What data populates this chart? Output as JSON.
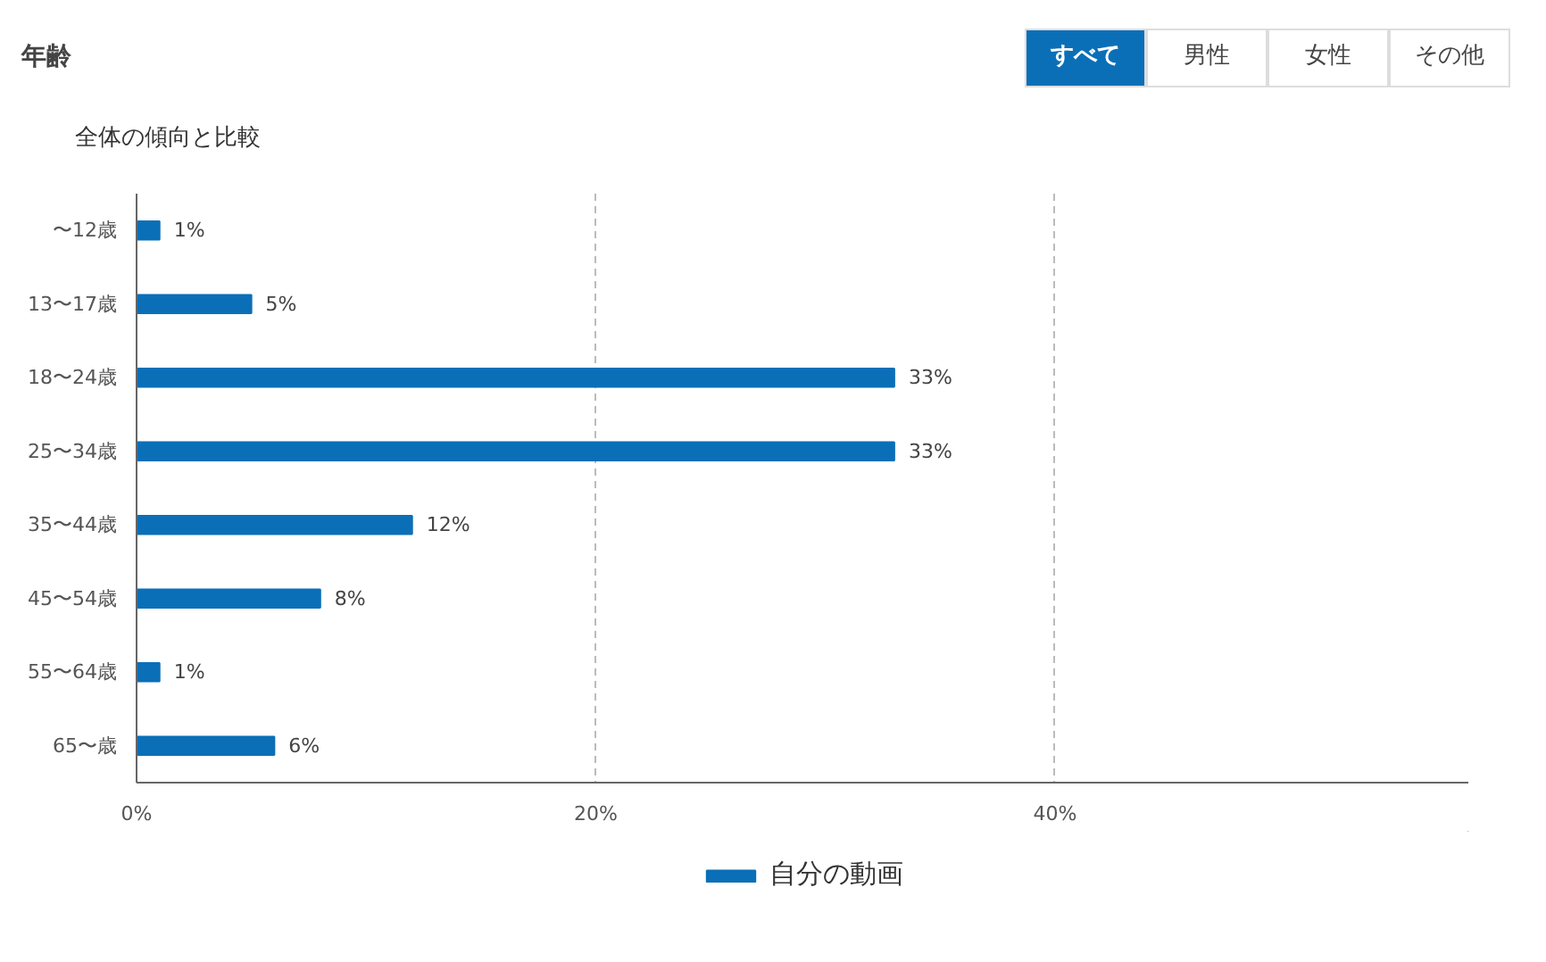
{
  "chart_data": {
    "type": "bar",
    "orientation": "horizontal",
    "title": "年齢",
    "annotations": [
      "すべて",
      "男性",
      "女性",
      "その他",
      "全体の傾向と比較"
    ],
    "categories": [
      "〜12歳",
      "13〜17歳",
      "18〜24歳",
      "25〜34歳",
      "35〜44歳",
      "45〜54歳",
      "55〜64歳",
      "65〜歳"
    ],
    "series": [
      {
        "name": "自分の動画",
        "color": "#0b6fb8",
        "values": [
          1,
          5,
          33,
          33,
          12,
          8,
          1,
          6
        ],
        "value_labels": [
          "1%",
          "5%",
          "33%",
          "33%",
          "12%",
          "8%",
          "1%",
          "6%"
        ]
      }
    ],
    "xlim": [
      0,
      58
    ],
    "xticks": [
      {
        "value": 0,
        "label": "0%"
      },
      {
        "value": 20,
        "label": "20%"
      },
      {
        "value": 40,
        "label": "40%"
      }
    ],
    "grid": "x",
    "legend": "bottom"
  }
}
